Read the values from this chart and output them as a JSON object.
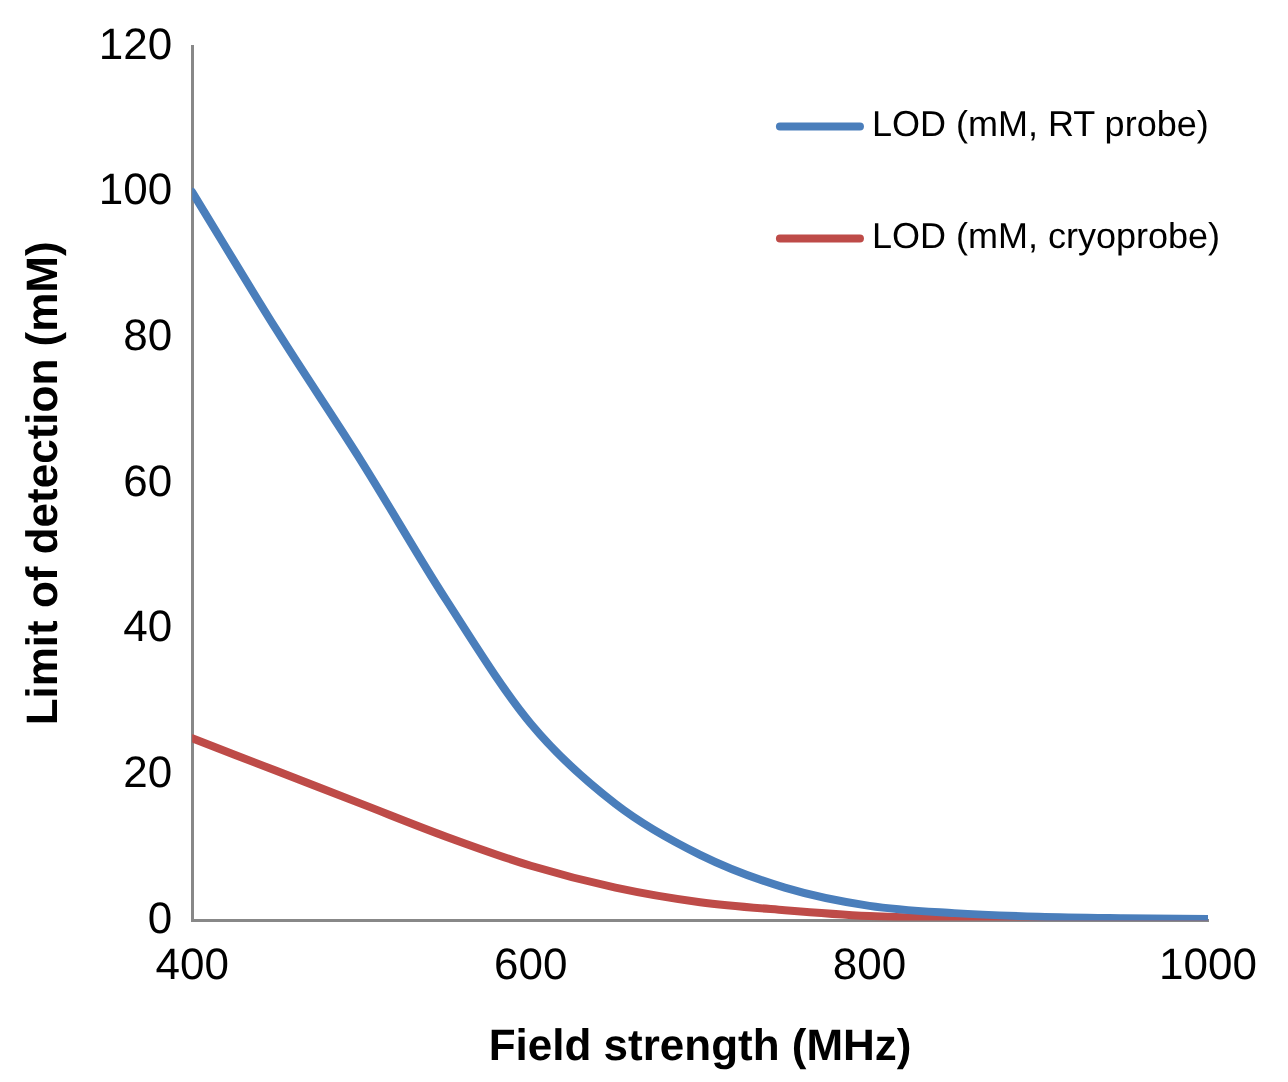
{
  "chart_data": {
    "type": "line",
    "xlabel": "Field strength (MHz)",
    "ylabel": "Limit of detection (mM)",
    "x": [
      400,
      450,
      500,
      550,
      600,
      650,
      700,
      750,
      800,
      850,
      900,
      950,
      1000
    ],
    "series": [
      {
        "name": "LOD (mM, RT probe)",
        "color": "#4a7ebb",
        "values": [
          100,
          81,
          63,
          44,
          27,
          16,
          9,
          4.5,
          2,
          1,
          0.5,
          0.3,
          0.2
        ]
      },
      {
        "name": "LOD (mM, cryoprobe)",
        "color": "#be4b48",
        "values": [
          25,
          20.5,
          16,
          11.5,
          7.5,
          4.5,
          2.5,
          1.4,
          0.6,
          0.3,
          0.1,
          0,
          0
        ]
      }
    ],
    "xlim": [
      400,
      1000
    ],
    "xticks": [
      400,
      600,
      800,
      1000
    ],
    "ylim": [
      0,
      120
    ],
    "yticks": [
      0,
      20,
      40,
      60,
      80,
      100,
      120
    ],
    "grid": false,
    "legend": "top right",
    "marker": "none",
    "line_style": "solid"
  }
}
